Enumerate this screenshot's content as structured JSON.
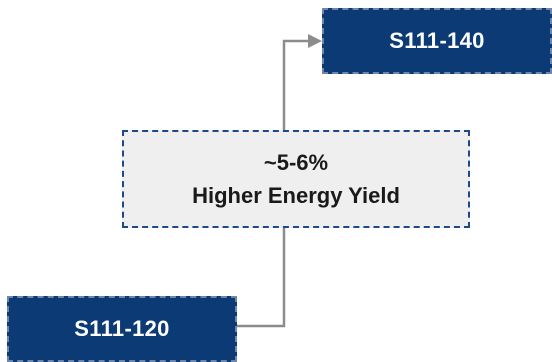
{
  "diagram": {
    "top_box": {
      "label": "S111-140"
    },
    "middle_box": {
      "line1": "~5-6%",
      "line2": "Higher Energy Yield"
    },
    "bottom_box": {
      "label": "S111-120"
    },
    "colors": {
      "dark_box_fill": "#0b3a75",
      "dark_box_border": "#6f86a9",
      "middle_box_fill": "#efefef",
      "middle_box_border": "#1d4a87",
      "connector": "#8c8c8c"
    }
  }
}
